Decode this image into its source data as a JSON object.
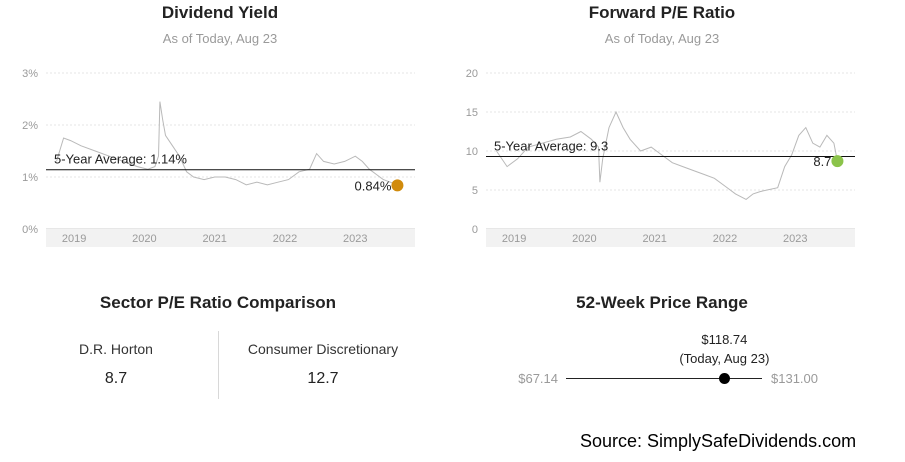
{
  "dividend_panel": {
    "title": "Dividend Yield",
    "subtitle": "As of Today, Aug 23",
    "avg_label": "5-Year Average: 1.14%",
    "last_label": "0.84%",
    "y_ticks": [
      "3%",
      "2%",
      "1%",
      "0%"
    ],
    "x_ticks": [
      "2019",
      "2020",
      "2021",
      "2022",
      "2023"
    ],
    "dot_color": "#d18b0c"
  },
  "pe_panel": {
    "title": "Forward P/E Ratio",
    "subtitle": "As of Today, Aug 23",
    "avg_label": "5-Year Average: 9.3",
    "last_label": "8.7",
    "y_ticks": [
      "20",
      "15",
      "10",
      "5",
      "0"
    ],
    "x_ticks": [
      "2019",
      "2020",
      "2021",
      "2022",
      "2023"
    ],
    "dot_color": "#8bc34a"
  },
  "sector": {
    "title": "Sector P/E Ratio Comparison",
    "left_name": "D.R. Horton",
    "left_value": "8.7",
    "right_name": "Consumer Discretionary",
    "right_value": "12.7"
  },
  "range": {
    "title": "52-Week Price Range",
    "current_price": "$118.74",
    "current_note": "(Today, Aug 23)",
    "low": "$67.14",
    "high": "$131.00",
    "low_value": 67.14,
    "high_value": 131.0,
    "current_value": 118.74
  },
  "source": "Source: SimplySafeDividends.com",
  "chart_data": [
    {
      "type": "line",
      "title": "Dividend Yield",
      "ylim": [
        0,
        3
      ],
      "y_unit": "%",
      "average": 1.14,
      "x": [
        2018.75,
        2018.85,
        2018.95,
        2019.1,
        2019.3,
        2019.5,
        2019.7,
        2019.9,
        2020.05,
        2020.15,
        2020.2,
        2020.22,
        2020.26,
        2020.3,
        2020.4,
        2020.5,
        2020.6,
        2020.7,
        2020.85,
        2021.0,
        2021.15,
        2021.3,
        2021.45,
        2021.6,
        2021.75,
        2021.9,
        2022.05,
        2022.2,
        2022.35,
        2022.45,
        2022.55,
        2022.7,
        2022.85,
        2023.0,
        2023.1,
        2023.2,
        2023.3,
        2023.4,
        2023.5,
        2023.6
      ],
      "values": [
        1.3,
        1.75,
        1.7,
        1.6,
        1.5,
        1.4,
        1.3,
        1.2,
        1.15,
        1.2,
        1.4,
        2.45,
        2.1,
        1.8,
        1.6,
        1.4,
        1.1,
        1.0,
        0.95,
        1.0,
        1.0,
        0.95,
        0.85,
        0.9,
        0.85,
        0.9,
        0.95,
        1.1,
        1.15,
        1.45,
        1.3,
        1.25,
        1.3,
        1.4,
        1.3,
        1.15,
        1.05,
        0.95,
        0.9,
        0.84
      ]
    },
    {
      "type": "line",
      "title": "Forward P/E Ratio",
      "ylim": [
        0,
        20
      ],
      "average": 9.3,
      "x": [
        2018.75,
        2018.9,
        2019.05,
        2019.2,
        2019.4,
        2019.6,
        2019.8,
        2019.95,
        2020.1,
        2020.2,
        2020.22,
        2020.26,
        2020.35,
        2020.45,
        2020.55,
        2020.65,
        2020.8,
        2020.95,
        2021.1,
        2021.25,
        2021.4,
        2021.55,
        2021.7,
        2021.85,
        2022.0,
        2022.15,
        2022.3,
        2022.4,
        2022.5,
        2022.6,
        2022.75,
        2022.85,
        2022.95,
        2023.05,
        2023.15,
        2023.25,
        2023.35,
        2023.45,
        2023.55,
        2023.6
      ],
      "values": [
        10.0,
        8.0,
        9.0,
        10.5,
        11.0,
        11.5,
        11.8,
        12.5,
        11.5,
        10.5,
        6.0,
        9.0,
        13.0,
        15.0,
        13.0,
        11.5,
        10.0,
        10.5,
        9.5,
        8.5,
        8.0,
        7.5,
        7.0,
        6.5,
        5.5,
        4.5,
        3.8,
        4.5,
        4.8,
        5.0,
        5.3,
        8.0,
        9.5,
        12.0,
        13.0,
        11.0,
        10.5,
        12.0,
        11.0,
        8.7
      ]
    }
  ]
}
